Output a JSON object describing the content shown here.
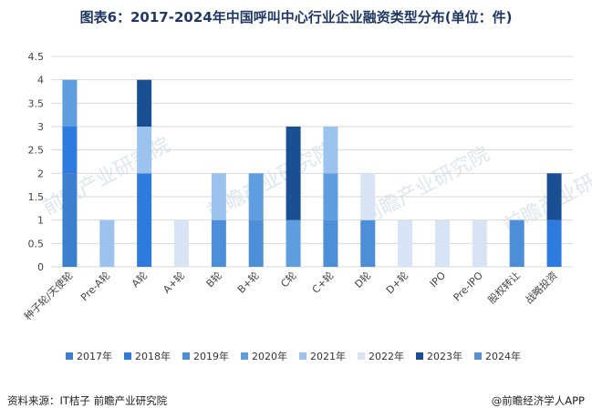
{
  "header": {
    "title": "图表6：2017-2024年中国呼叫中心行业企业融资类型分布(单位：件)"
  },
  "footer": {
    "source": "资料来源：IT桔子 前瞻产业研究院",
    "brand": "@前瞻经济学人APP"
  },
  "watermark": {
    "text": "前瞻产业研究院",
    "color": "#dfe6ee"
  },
  "chart_data": {
    "type": "bar",
    "stacked": true,
    "categories": [
      "种子轮/天使轮",
      "Pre-A轮",
      "A轮",
      "A+轮",
      "B轮",
      "B+轮",
      "C轮",
      "C+轮",
      "D轮",
      "D+轮",
      "IPO",
      "Pre-IPO",
      "股权转让",
      "战略投资"
    ],
    "series": [
      {
        "name": "2017年",
        "color": "#3d7fcf",
        "values": [
          2,
          0,
          0,
          0,
          0,
          0,
          0,
          0,
          0,
          0,
          0,
          0,
          0,
          0
        ]
      },
      {
        "name": "2018年",
        "color": "#2e7be0",
        "values": [
          1,
          0,
          2,
          0,
          0,
          0,
          0,
          0,
          0,
          0,
          0,
          0,
          0,
          1
        ]
      },
      {
        "name": "2019年",
        "color": "#4d8ed9",
        "values": [
          0,
          0,
          0,
          0,
          1,
          1,
          0,
          1,
          1,
          0,
          0,
          0,
          1,
          0
        ]
      },
      {
        "name": "2020年",
        "color": "#5e9de0",
        "values": [
          1,
          0,
          0,
          0,
          0,
          1,
          1,
          1,
          0,
          0,
          0,
          0,
          0,
          0
        ]
      },
      {
        "name": "2021年",
        "color": "#9cc3ee",
        "values": [
          0,
          1,
          1,
          0,
          1,
          0,
          0,
          1,
          0,
          0,
          0,
          0,
          0,
          0
        ]
      },
      {
        "name": "2022年",
        "color": "#d6e4f6",
        "values": [
          0,
          0,
          0,
          1,
          0,
          0,
          0,
          0,
          1,
          1,
          1,
          1,
          0,
          0
        ]
      },
      {
        "name": "2023年",
        "color": "#1a4f94",
        "values": [
          0,
          0,
          1,
          0,
          0,
          0,
          2,
          0,
          0,
          0,
          0,
          0,
          0,
          1
        ]
      },
      {
        "name": "2024年",
        "color": "#5b8fd4",
        "values": [
          0,
          0,
          0,
          0,
          0,
          0,
          0,
          0,
          0,
          0,
          0,
          0,
          0,
          0
        ]
      }
    ],
    "ylim": [
      0,
      4.5
    ],
    "yticks": [
      "0",
      "0.5",
      "1",
      "1.5",
      "2",
      "2.5",
      "3",
      "3.5",
      "4",
      "4.5"
    ],
    "grid": true,
    "legend": "bottom"
  }
}
